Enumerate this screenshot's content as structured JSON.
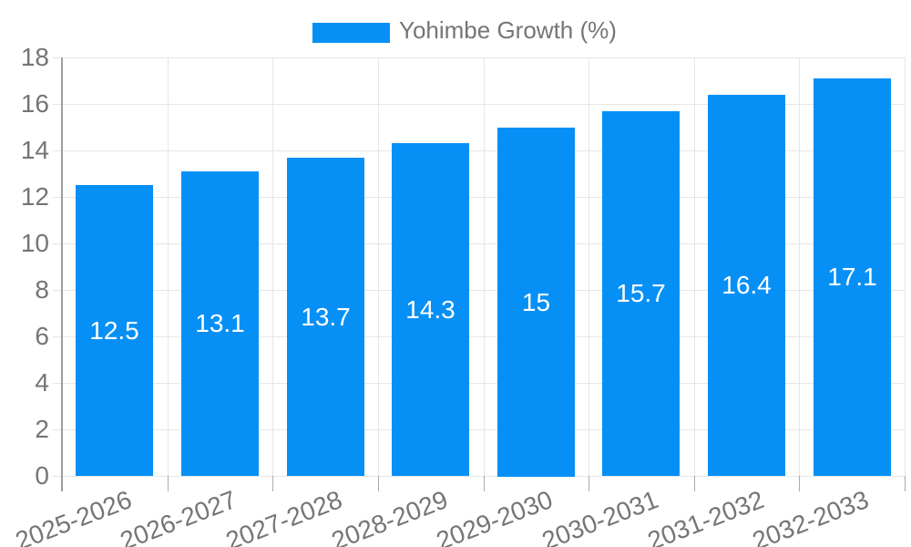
{
  "chart_data": {
    "type": "bar",
    "title": "",
    "xlabel": "",
    "ylabel": "",
    "legend": {
      "position": "top",
      "label": "Yohimbe Growth (%)"
    },
    "categories": [
      "2025-2026",
      "2026-2027",
      "2027-2028",
      "2028-2029",
      "2029-2030",
      "2030-2031",
      "2031-2032",
      "2032-2033"
    ],
    "series": [
      {
        "name": "Yohimbe Growth (%)",
        "values": [
          12.5,
          13.1,
          13.7,
          14.3,
          15,
          15.7,
          16.4,
          17.1
        ],
        "value_labels": [
          "12.5",
          "13.1",
          "13.7",
          "14.3",
          "15",
          "15.7",
          "16.4",
          "17.1"
        ]
      }
    ],
    "ylim": [
      0,
      18
    ],
    "ytick_step": 2,
    "ytick_labels": [
      "0",
      "2",
      "4",
      "6",
      "8",
      "10",
      "12",
      "14",
      "16",
      "18"
    ],
    "grid": true,
    "colors": {
      "bar": "#0690f6",
      "axis_text": "#757575",
      "gridline": "#e6e6e6",
      "axis_line": "#9e9e9e",
      "tick": "#ababab",
      "bar_label": "#ffffff",
      "background": "#ffffff"
    }
  }
}
